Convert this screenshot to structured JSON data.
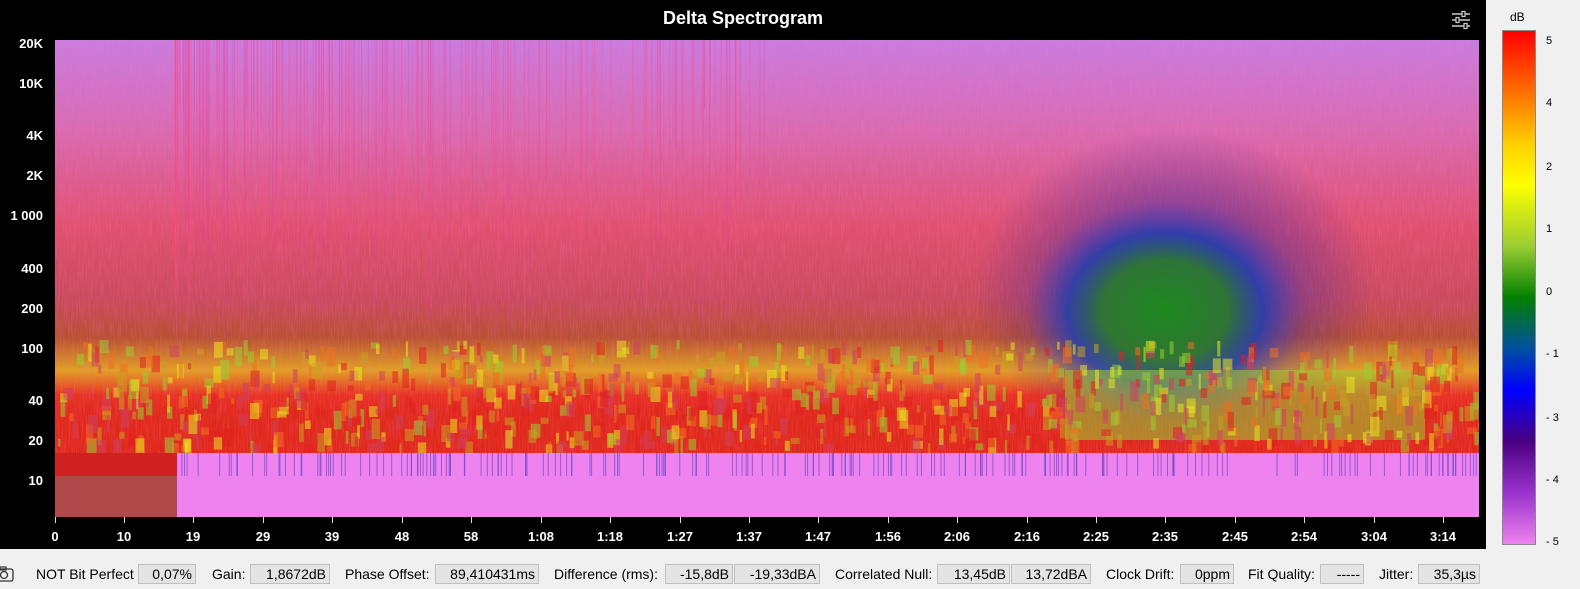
{
  "title": "Delta Spectrogram",
  "y_axis": {
    "ticks": [
      "20K",
      "10K",
      "4K",
      "2K",
      "1 000",
      "400",
      "200",
      "100",
      "40",
      "20",
      "10"
    ]
  },
  "x_axis": {
    "ticks": [
      "0",
      "10",
      "19",
      "29",
      "39",
      "48",
      "58",
      "1:08",
      "1:18",
      "1:27",
      "1:37",
      "1:47",
      "1:56",
      "2:06",
      "2:16",
      "2:25",
      "2:35",
      "2:45",
      "2:54",
      "3:04",
      "3:14"
    ]
  },
  "colorbar": {
    "unit": "dB",
    "ticks": [
      "5",
      "4",
      "2",
      "1",
      "0",
      "- 1",
      "- 3",
      "- 4",
      "- 5"
    ]
  },
  "status": {
    "bit_perfect": "NOT Bit Perfect",
    "bit_perfect_value": "0,07%",
    "gain_label": "Gain:",
    "gain_value": "1,8672dB",
    "phase_label": "Phase Offset:",
    "phase_value": "89,410431ms",
    "diff_label": "Difference (rms):",
    "diff_db": "-15,8dB",
    "diff_dba": "-19,33dBA",
    "null_label": "Correlated Null:",
    "null_db": "13,45dB",
    "null_dba": "13,72dBA",
    "drift_label": "Clock Drift:",
    "drift_value": "0ppm",
    "fit_label": "Fit Quality:",
    "fit_value": "-----",
    "jitter_label": "Jitter:",
    "jitter_value": "35,3µs"
  },
  "icons": {
    "settings": "sliders-icon",
    "camera": "camera-icon"
  }
}
